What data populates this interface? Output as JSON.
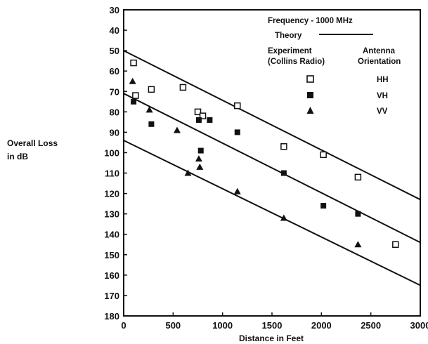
{
  "chart_data": {
    "type": "scatter",
    "xlabel": "Distance in Feet",
    "ylabel_line1": "Overall Loss",
    "ylabel_line2": "in dB",
    "xlim": [
      0,
      3000
    ],
    "ylim": [
      30,
      180
    ],
    "y_inverted": true,
    "xticks": [
      0,
      500,
      1000,
      1500,
      2000,
      2500,
      3000
    ],
    "yticks": [
      30,
      40,
      50,
      60,
      70,
      80,
      90,
      100,
      110,
      120,
      130,
      140,
      150,
      160,
      170,
      180
    ],
    "grid": false,
    "legend": {
      "placement": "top-right",
      "title": "Frequency - 1000 MHz",
      "theory_label": "Theory",
      "experiment_label_line1": "Experiment",
      "experiment_label_line2": "(Collins Radio)",
      "orientation_label_line1": "Antenna",
      "orientation_label_line2": "Orientation"
    },
    "theory_lines": [
      {
        "name": "HH",
        "x": [
          0,
          3000
        ],
        "y": [
          50,
          123
        ]
      },
      {
        "name": "VH",
        "x": [
          0,
          3000
        ],
        "y": [
          71,
          144
        ]
      },
      {
        "name": "VV",
        "x": [
          0,
          3000
        ],
        "y": [
          94,
          165
        ]
      }
    ],
    "series": [
      {
        "name": "HH",
        "marker": "open-square",
        "points": [
          [
            100,
            56
          ],
          [
            120,
            72
          ],
          [
            280,
            69
          ],
          [
            600,
            68
          ],
          [
            750,
            80
          ],
          [
            800,
            82
          ],
          [
            1150,
            77
          ],
          [
            1620,
            97
          ],
          [
            2020,
            101
          ],
          [
            2370,
            112
          ],
          [
            2750,
            145
          ]
        ]
      },
      {
        "name": "VH",
        "marker": "filled-square",
        "points": [
          [
            100,
            75
          ],
          [
            280,
            86
          ],
          [
            760,
            84
          ],
          [
            870,
            84
          ],
          [
            780,
            99
          ],
          [
            1150,
            90
          ],
          [
            1620,
            110
          ],
          [
            2020,
            126
          ],
          [
            2370,
            130
          ]
        ]
      },
      {
        "name": "VV",
        "marker": "filled-triangle",
        "points": [
          [
            90,
            65
          ],
          [
            260,
            79
          ],
          [
            540,
            89
          ],
          [
            760,
            103
          ],
          [
            770,
            107
          ],
          [
            650,
            110
          ],
          [
            1150,
            119
          ],
          [
            1620,
            132
          ],
          [
            2370,
            145
          ]
        ]
      }
    ]
  }
}
